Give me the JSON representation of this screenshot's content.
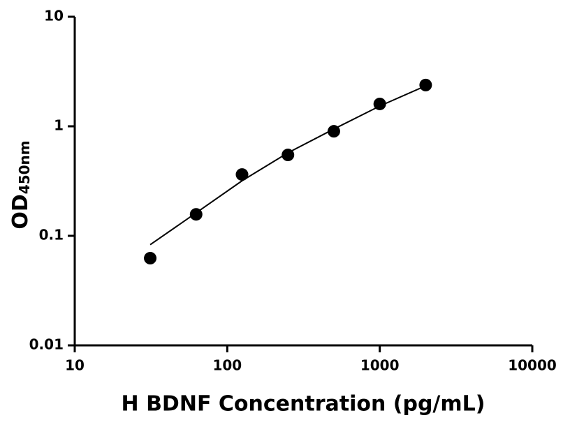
{
  "chart_data": {
    "type": "scatter",
    "xlabel": "H BDNF Concentration (pg/mL)",
    "ylabel": "OD",
    "ylabel_subscript": "450nm",
    "x": [
      31.25,
      62.5,
      125,
      250,
      500,
      1000,
      2000
    ],
    "values": [
      0.0625,
      0.157,
      0.363,
      0.548,
      0.9,
      1.6,
      2.38
    ],
    "color": "#000000",
    "fit": {
      "x": [
        31.25,
        62.5,
        125,
        250,
        500,
        1000,
        2000
      ],
      "values": [
        0.083,
        0.162,
        0.318,
        0.573,
        0.944,
        1.53,
        2.34
      ],
      "color": "#000000"
    },
    "xscale": "log",
    "yscale": "log",
    "xlim": [
      10,
      10000
    ],
    "ylim": [
      0.01,
      10
    ],
    "xticks": [
      10,
      100,
      1000,
      10000
    ],
    "yticks": [
      0.01,
      0.1,
      1,
      10
    ],
    "grid": false
  }
}
